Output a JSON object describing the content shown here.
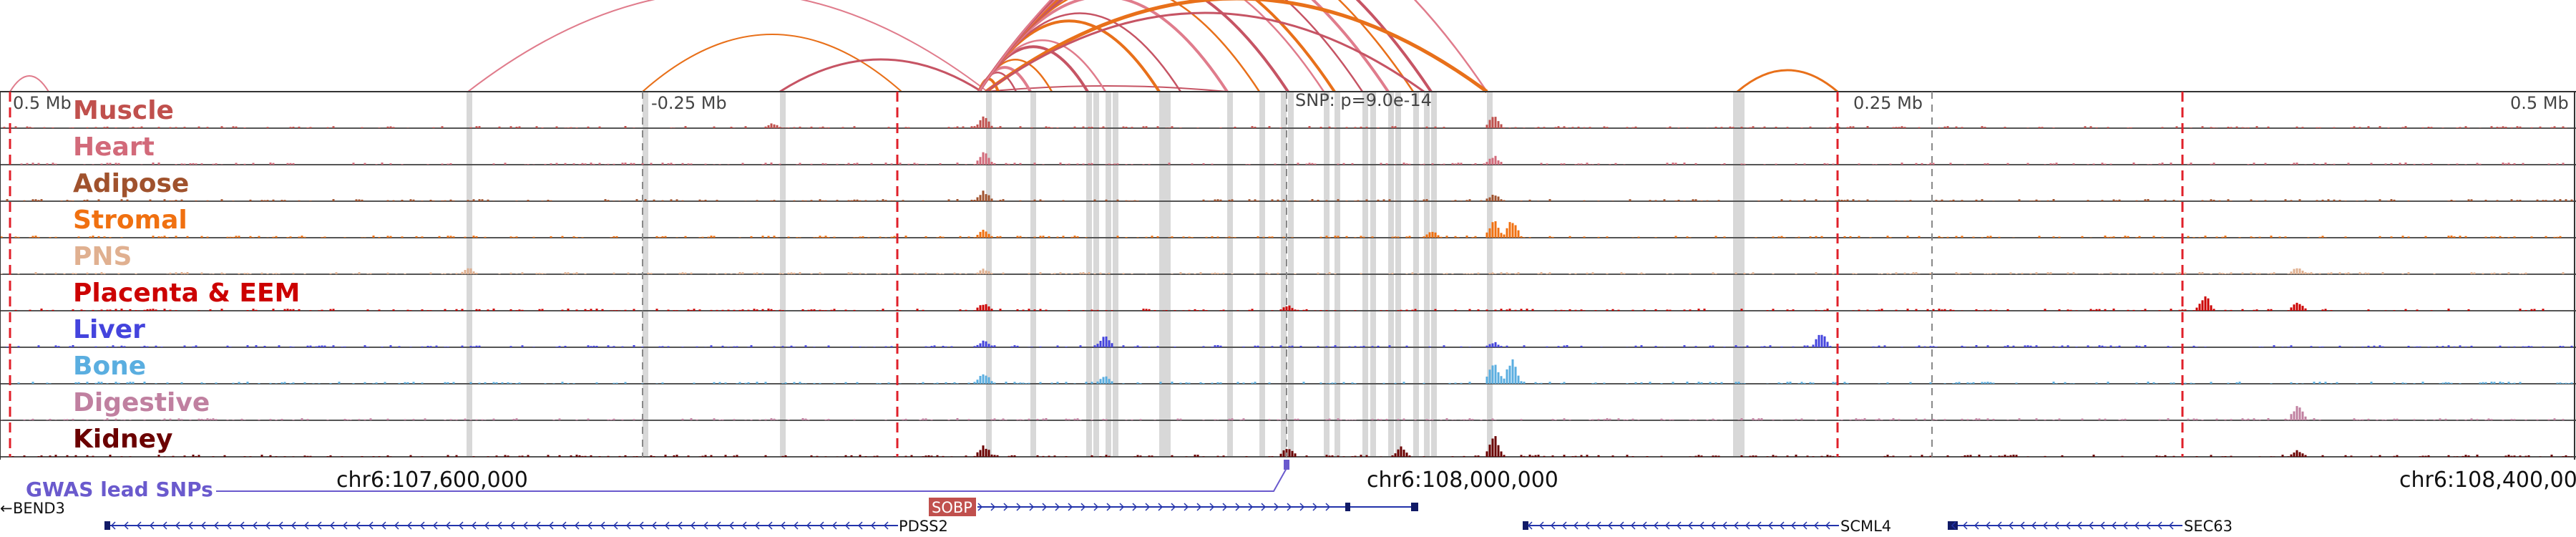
{
  "scale": {
    "left_label": "0.5 Mb",
    "left_mid_label": "-0.25 Mb",
    "snp_label": "SNP: p=9.0e-14",
    "right_mid_label": "0.25 Mb",
    "right_label": "0.5 Mb"
  },
  "tracks": [
    {
      "label": "Muscle",
      "color": "#c0504d",
      "peaks": [
        [
          0.382,
          0.45
        ],
        [
          0.58,
          0.55
        ],
        [
          0.3,
          0.2
        ]
      ]
    },
    {
      "label": "Heart",
      "color": "#d26a7a",
      "peaks": [
        [
          0.382,
          0.5
        ],
        [
          0.58,
          0.35
        ]
      ]
    },
    {
      "label": "Adipose",
      "color": "#a0522d",
      "peaks": [
        [
          0.382,
          0.4
        ],
        [
          0.58,
          0.3
        ]
      ]
    },
    {
      "label": "Stromal",
      "color": "#f07010",
      "peaks": [
        [
          0.58,
          0.75
        ],
        [
          0.587,
          0.7
        ],
        [
          0.556,
          0.25
        ],
        [
          0.382,
          0.3
        ]
      ]
    },
    {
      "label": "PNS",
      "color": "#e0b090",
      "peaks": [
        [
          0.182,
          0.25
        ],
        [
          0.892,
          0.3
        ],
        [
          0.382,
          0.2
        ]
      ]
    },
    {
      "label": "Placenta & EEM",
      "color": "#cc0000",
      "peaks": [
        [
          0.856,
          0.6
        ],
        [
          0.892,
          0.35
        ],
        [
          0.382,
          0.3
        ],
        [
          0.5,
          0.2
        ]
      ]
    },
    {
      "label": "Liver",
      "color": "#4444dd",
      "peaks": [
        [
          0.429,
          0.45
        ],
        [
          0.707,
          0.55
        ],
        [
          0.382,
          0.25
        ],
        [
          0.58,
          0.2
        ]
      ]
    },
    {
      "label": "Bone",
      "color": "#5aaee0",
      "peaks": [
        [
          0.58,
          0.9
        ],
        [
          0.587,
          1.0
        ],
        [
          0.382,
          0.45
        ],
        [
          0.429,
          0.3
        ]
      ]
    },
    {
      "label": "Digestive",
      "color": "#c080a0",
      "peaks": [
        [
          0.892,
          0.6
        ]
      ]
    },
    {
      "label": "Kidney",
      "color": "#6b0000",
      "peaks": [
        [
          0.58,
          0.85
        ],
        [
          0.382,
          0.45
        ],
        [
          0.5,
          0.4
        ],
        [
          0.544,
          0.35
        ],
        [
          0.892,
          0.25
        ]
      ]
    }
  ],
  "gwas": {
    "label": "GWAS lead SNPs",
    "color": "#6a5acd"
  },
  "coordinates": {
    "left": "chr6:107,600,000",
    "center": "chr6:108,000,000",
    "right": "chr6:108,400,00"
  },
  "genes": [
    {
      "label": "BEND3",
      "color": "#222288"
    },
    {
      "label": "SOBP",
      "color": "#2233aa",
      "highlight": "#c0504d"
    },
    {
      "label": "PDSS2",
      "color": "#2233aa"
    },
    {
      "label": "SCML4",
      "color": "#2233aa"
    },
    {
      "label": "SEC63",
      "color": "#2233aa"
    }
  ],
  "colors": {
    "arc_orange": "#e8701a",
    "arc_rose": "#c65464",
    "arc_pink": "#e07c8c",
    "boundary_red": "#e0202a",
    "highlight_band": "#d8d8d8"
  }
}
